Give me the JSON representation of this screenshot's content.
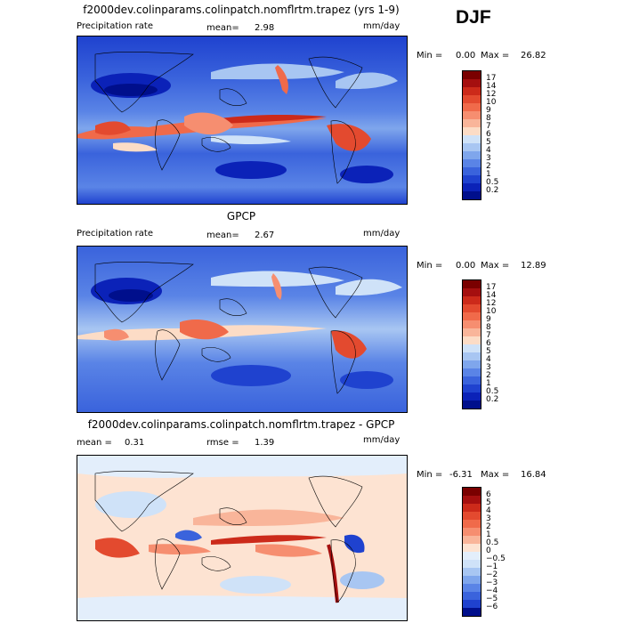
{
  "season": "DJF",
  "panels": [
    {
      "title": "f2000dev.colinparams.colinpatch.nomflrtm.trapez (yrs 1-9)",
      "left_label": "Precipitation rate",
      "mid_label": "mean=",
      "mid_value": "2.98",
      "right_label": "mm/day",
      "min_label": "Min =",
      "min_value": "0.00",
      "max_label": "Max =",
      "max_value": "26.82",
      "colorbar": {
        "labels": [
          "17",
          "14",
          "12",
          "10",
          "9",
          "8",
          "7",
          "6",
          "5",
          "4",
          "3",
          "2",
          "1",
          "0.5",
          "0.2"
        ],
        "colors": [
          "#7a0000",
          "#a50f0f",
          "#cc2a1a",
          "#e34a2f",
          "#f06a4a",
          "#f68e70",
          "#f9b59a",
          "#fcdcc6",
          "#cfe2f8",
          "#a8c6f2",
          "#7fa6ec",
          "#5a84e6",
          "#3a63dc",
          "#1f42cf",
          "#0b22b8",
          "#000f8c"
        ]
      }
    },
    {
      "title": "GPCP",
      "left_label": "Precipitation rate",
      "mid_label": "mean=",
      "mid_value": "2.67",
      "right_label": "mm/day",
      "min_label": "Min =",
      "min_value": "0.00",
      "max_label": "Max =",
      "max_value": "12.89",
      "colorbar": {
        "labels": [
          "17",
          "14",
          "12",
          "10",
          "9",
          "8",
          "7",
          "6",
          "5",
          "4",
          "3",
          "2",
          "1",
          "0.5",
          "0.2"
        ],
        "colors": [
          "#7a0000",
          "#a50f0f",
          "#cc2a1a",
          "#e34a2f",
          "#f06a4a",
          "#f68e70",
          "#f9b59a",
          "#fcdcc6",
          "#cfe2f8",
          "#a8c6f2",
          "#7fa6ec",
          "#5a84e6",
          "#3a63dc",
          "#1f42cf",
          "#0b22b8",
          "#000f8c"
        ]
      }
    },
    {
      "title": "f2000dev.colinparams.colinpatch.nomflrtm.trapez - GPCP",
      "left_label": "mean =",
      "left_value": "0.31",
      "mid_label": "rmse =",
      "mid_value": "1.39",
      "right_label": "mm/day",
      "min_label": "Min =",
      "min_value": "-6.31",
      "max_label": "Max =",
      "max_value": "16.84",
      "colorbar": {
        "labels": [
          "6",
          "5",
          "4",
          "3",
          "2",
          "1",
          "0.5",
          "0",
          "−0.5",
          "−1",
          "−2",
          "−3",
          "−4",
          "−5",
          "−6"
        ],
        "colors": [
          "#7a0000",
          "#a50f0f",
          "#cc2a1a",
          "#e34a2f",
          "#f06a4a",
          "#f68e70",
          "#f9b59a",
          "#fde3d2",
          "#e3eefb",
          "#cfe2f8",
          "#a8c6f2",
          "#7fa6ec",
          "#5a84e6",
          "#3a63dc",
          "#1f42cf",
          "#000f8c"
        ]
      }
    }
  ]
}
